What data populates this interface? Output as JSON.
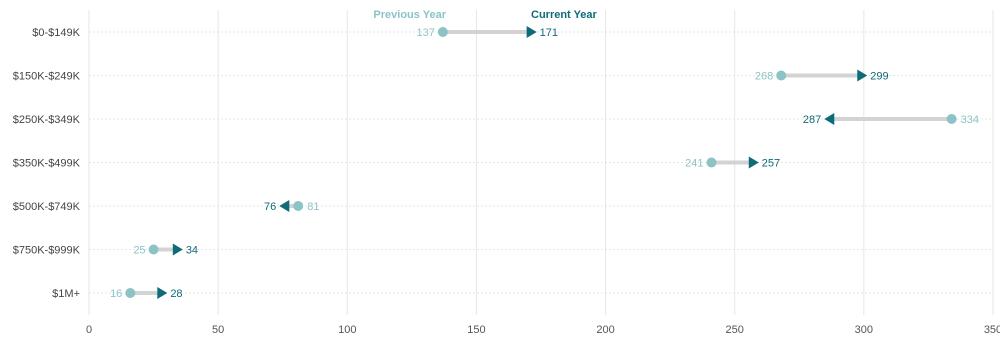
{
  "colors": {
    "previous": "#8cc3c7",
    "current": "#0e6b78",
    "connector": "#d3d3d3",
    "grid": "#e6e6e6",
    "axis_text": "#555555"
  },
  "chart_data": {
    "type": "dumbbell",
    "categories": [
      "$0-$149K",
      "$150K-$249K",
      "$250K-$349K",
      "$350K-$499K",
      "$500K-$749K",
      "$750K-$999K",
      "$1M+"
    ],
    "series": [
      {
        "name": "Previous Year",
        "values": [
          137,
          268,
          334,
          241,
          81,
          25,
          16
        ]
      },
      {
        "name": "Current Year",
        "values": [
          171,
          299,
          287,
          257,
          76,
          34,
          28
        ]
      }
    ],
    "xlim": [
      0,
      350
    ],
    "xticks": [
      0,
      50,
      100,
      150,
      200,
      250,
      300,
      350
    ],
    "legend_position": "top-center",
    "grid": true
  }
}
